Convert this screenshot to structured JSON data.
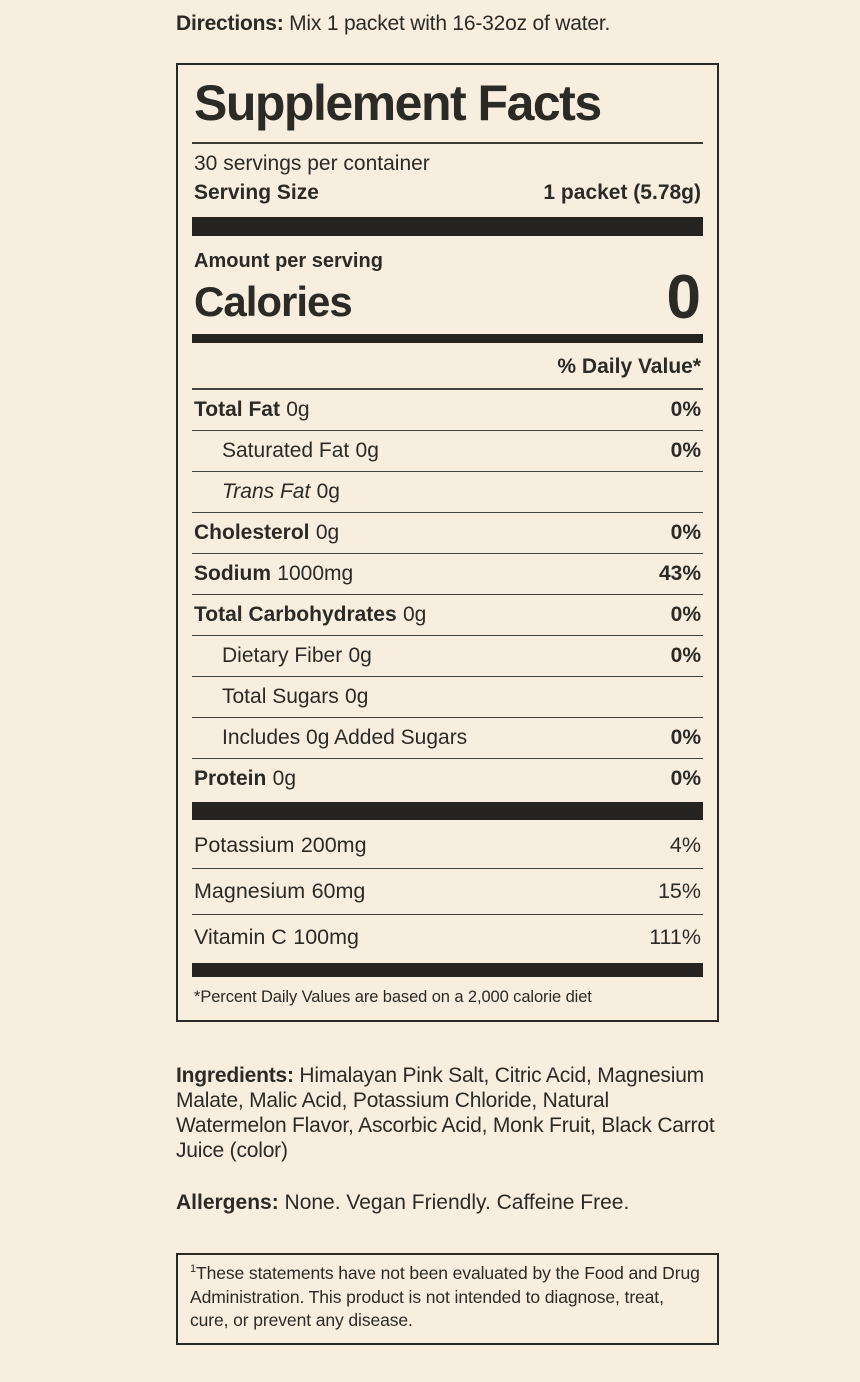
{
  "page": {
    "background_color": "#f8eee0",
    "ink_color": "#2b2a25"
  },
  "directions": {
    "label": "Directions:",
    "text": " Mix 1 packet with 16-32oz of water."
  },
  "panel": {
    "title": "Supplement Facts",
    "servings_per_container": "30 servings per container",
    "serving_size_label": "Serving Size",
    "serving_size_value": "1 packet (5.78g)",
    "amount_per_serving_label": "Amount per serving",
    "calories_label": "Calories",
    "calories_value": "0",
    "daily_value_header": "% Daily Value*",
    "rows": [
      {
        "name": "Total Fat",
        "amount": "0g",
        "dv": "0%"
      },
      {
        "name": "Saturated Fat",
        "amount": "0g",
        "dv": "0%"
      },
      {
        "name": "Trans Fat",
        "amount": "0g",
        "dv": ""
      },
      {
        "name": "Cholesterol",
        "amount": "0g",
        "dv": "0%"
      },
      {
        "name": "Sodium",
        "amount": "1000mg",
        "dv": "43%"
      },
      {
        "name": "Total Carbohydrates",
        "amount": "0g",
        "dv": "0%"
      },
      {
        "name": "Dietary Fiber",
        "amount": "0g",
        "dv": "0%"
      },
      {
        "name": "Total Sugars",
        "amount": "0g",
        "dv": ""
      },
      {
        "name": "Includes 0g Added Sugars",
        "amount": "",
        "dv": "0%"
      },
      {
        "name": "Protein",
        "amount": "0g",
        "dv": "0%"
      }
    ],
    "minerals": [
      {
        "name": "Potassium",
        "amount": "200mg",
        "dv": "4%"
      },
      {
        "name": "Magnesium",
        "amount": "60mg",
        "dv": "15%"
      },
      {
        "name": "Vitamin C",
        "amount": "100mg",
        "dv": "111%"
      }
    ],
    "footnote": "*Percent Daily Values are based on a 2,000 calorie diet"
  },
  "ingredients": {
    "label": "Ingredients:",
    "text": " Himalayan Pink Salt, Citric Acid, Magnesium Malate, Malic Acid, Potassium Chloride, Natural Watermelon Flavor, Ascorbic Acid, Monk Fruit, Black Carrot Juice (color)"
  },
  "allergens": {
    "label": "Allergens:",
    "text": " None. Vegan Friendly. Caffeine Free."
  },
  "disclaimer": {
    "superscript": "1",
    "text": "These statements have not been evaluated by the Food and Drug Administration.  This product is not intended to diagnose, treat, cure, or prevent any disease."
  }
}
